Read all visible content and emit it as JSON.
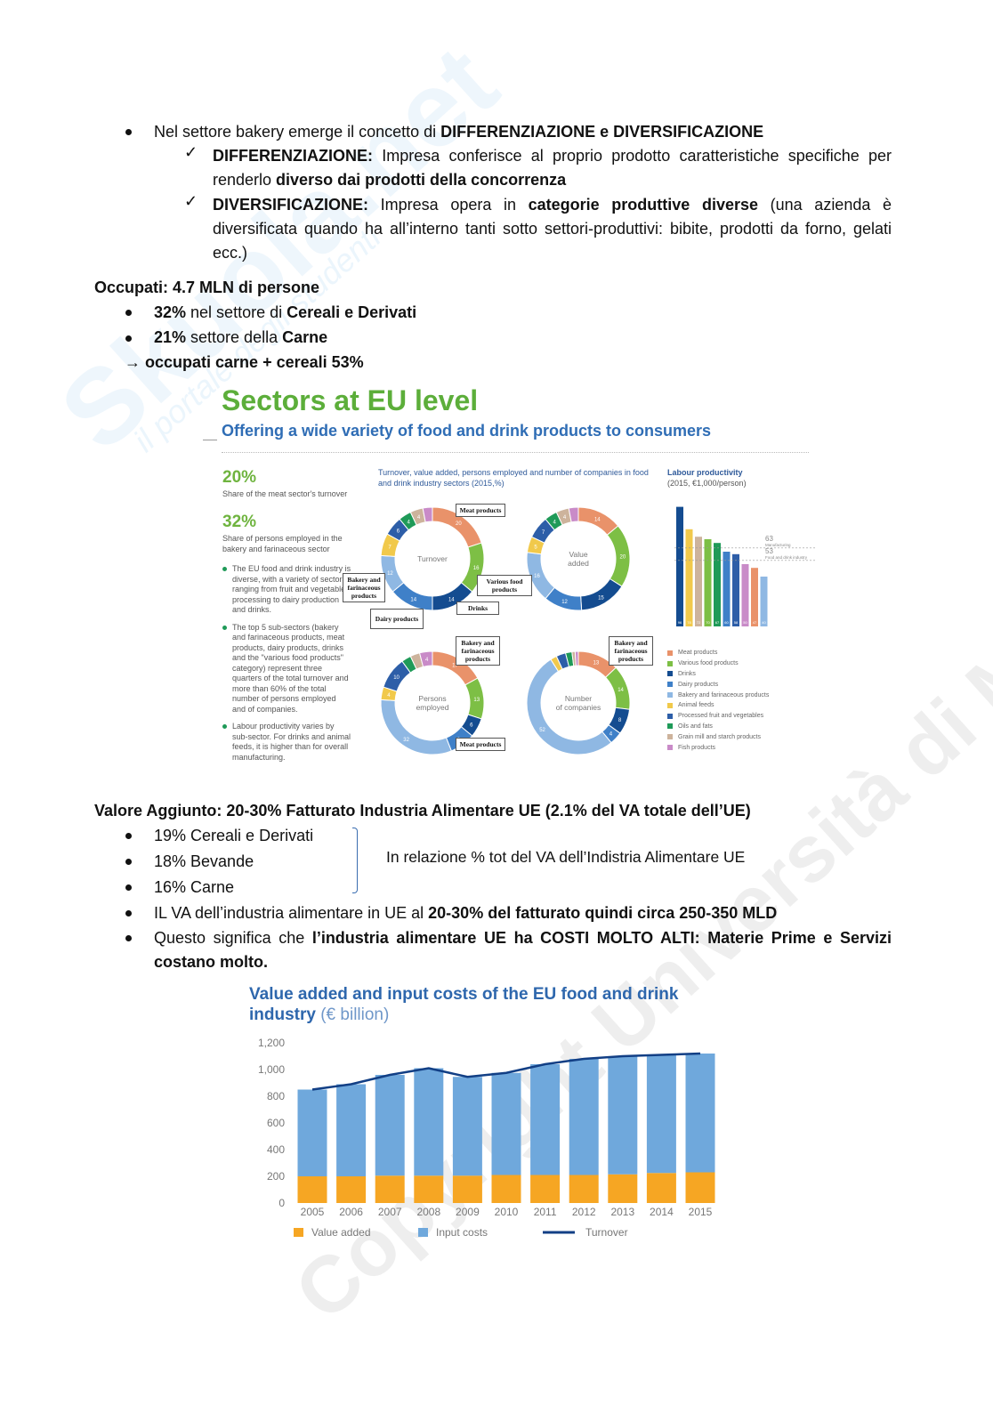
{
  "watermarks": {
    "logo": "Skuola.net",
    "tagline": "il portale degli studenti",
    "copyright": "Copyright Università di Milano"
  },
  "intro": {
    "bullet": {
      "pre": "Nel settore bakery emerge il concetto di ",
      "bold": "DIFFERENZIAZIONE e DIVERSIFICAZIONE"
    },
    "checks": [
      {
        "term": "DIFFERENZIAZIONE:",
        "t1": " Impresa conferisce al proprio prodotto caratteristiche specifiche per renderlo ",
        "b1": "diverso dai prodotti della concorrenza",
        "t2": ""
      },
      {
        "term": "DIVERSIFICAZIONE:",
        "t1": " Impresa opera in ",
        "b1": "categorie produttive diverse",
        "t2": " (una azienda è diversificata quando ha all’interno tanti sotto settori-produttivi: bibite, prodotti da forno, gelati ecc.)"
      }
    ]
  },
  "occupati": {
    "heading": "Occupati: 4.7 MLN di persone",
    "items": [
      {
        "b1": "32%",
        "t": " nel settore di ",
        "b2": "Cereali e Derivati"
      },
      {
        "b1": "21%",
        "t": " settore della ",
        "b2": "Carne"
      }
    ],
    "arrow": "→",
    "arrow_text": "occupati carne + cereali 53%"
  },
  "infographic": {
    "title": "Sectors at EU level",
    "subtitle": "Offering a wide variety of food and drink products to consumers",
    "stat1": {
      "value": "20%",
      "label": "Share of the meat sector's turnover"
    },
    "stat2": {
      "value": "32%",
      "label": "Share of persons employed in the bakery and farinaceous sector"
    },
    "notes": [
      "The EU food and drink industry is diverse, with a variety of sectors ranging from fruit and vegetable processing to dairy production and drinks.",
      "The top 5 sub-sectors (bakery and farinaceous products, meat products, dairy products, drinks and the \"various food products\" category) represent three quarters of the total turnover and more than 60% of the total number of persons employed and of companies.",
      "Labour productivity varies by sub-sector. For drinks and animal feeds, it is higher than for overall manufacturing."
    ],
    "donut_heading": "Turnover, value added, persons employed and number of companies in food and drink industry sectors (2015,%)",
    "productivity_heading": "Labour productivity",
    "productivity_sub": "(2015, €1,000/person)",
    "ref_manufacturing": {
      "value": "63",
      "label": "Manufacturing"
    },
    "ref_food": {
      "value": "53",
      "label": "Food and drink industry"
    },
    "sectors": [
      {
        "name": "Meat products",
        "color": "#e9926a"
      },
      {
        "name": "Various food products",
        "color": "#7dbf45"
      },
      {
        "name": "Drinks",
        "color": "#144c90"
      },
      {
        "name": "Dairy products",
        "color": "#3f80c8"
      },
      {
        "name": "Bakery and farinaceous products",
        "color": "#8fb8e3"
      },
      {
        "name": "Animal feeds",
        "color": "#f1c94b"
      },
      {
        "name": "Processed fruit and vegetables",
        "color": "#2d5ea8"
      },
      {
        "name": "Oils and fats",
        "color": "#1f9a58"
      },
      {
        "name": "Grain mill and starch products",
        "color": "#cdb39c"
      },
      {
        "name": "Fish products",
        "color": "#c98bc8"
      }
    ],
    "donuts": [
      {
        "label": "Turnover",
        "values": [
          20,
          16,
          14,
          14,
          12,
          7,
          6,
          4,
          4,
          3
        ]
      },
      {
        "label": "Value added",
        "values": [
          14,
          20,
          15,
          12,
          16,
          5,
          7,
          4,
          4,
          3
        ]
      },
      {
        "label": "Persons employed",
        "values": [
          17,
          13,
          6,
          8,
          32,
          4,
          10,
          3,
          3,
          4
        ]
      },
      {
        "label": "Number of companies",
        "values": [
          13,
          14,
          8,
          4,
          52,
          2,
          3,
          2,
          1,
          1
        ]
      }
    ],
    "callouts": {
      "meat1": "Meat products",
      "various": "Various food products",
      "drinks": "Drinks",
      "bakery1": "Bakery and farinaceous products",
      "dairy": "Dairy products",
      "bakery2": "Bakery and farinaceous products",
      "meat2": "Meat products",
      "bakery3": "Bakery and farinaceous products"
    },
    "productivity_values": [
      96,
      78,
      72,
      70,
      67,
      60,
      58,
      50,
      47,
      40
    ],
    "productivity_colors": [
      "#144c90",
      "#f1c94b",
      "#cdb39c",
      "#7dbf45",
      "#1f9a58",
      "#3f80c8",
      "#2d5ea8",
      "#c98bc8",
      "#e9926a",
      "#8fb8e3"
    ]
  },
  "valore": {
    "heading": "Valore Aggiunto: 20-30% Fatturato Industria Alimentare UE  (2.1% del VA totale dell’UE)",
    "items": [
      "19% Cereali e Derivati",
      "18% Bevande",
      "16% Carne"
    ],
    "brace_note": "In relazione % tot del VA dell’Indistria Alimentare UE",
    "b3": {
      "t": "IL VA dell’industria alimentare in UE al ",
      "b": "20-30% del fatturato quindi circa 250-350 MLD"
    },
    "b4": {
      "t": "Questo significa che ",
      "b": "l’industria alimentare UE ha COSTI MOLTO ALTI: Materie Prime e Servizi costano molto."
    }
  },
  "chart_data": {
    "type": "bar",
    "title": "Value added and input costs of the EU food and drink industry",
    "title_unit": "(€ billion)",
    "categories": [
      "2005",
      "2006",
      "2007",
      "2008",
      "2009",
      "2010",
      "2011",
      "2012",
      "2013",
      "2014",
      "2015"
    ],
    "series": [
      {
        "name": "Value added",
        "color": "#f6a623",
        "values": [
          200,
          200,
          205,
          205,
          205,
          210,
          210,
          210,
          215,
          225,
          230
        ]
      },
      {
        "name": "Input costs",
        "color": "#6fa8dc",
        "values": [
          650,
          690,
          755,
          805,
          740,
          765,
          830,
          870,
          885,
          885,
          890
        ]
      },
      {
        "name": "Turnover",
        "color": "#123f85",
        "type": "line",
        "values": [
          850,
          890,
          960,
          1010,
          945,
          975,
          1040,
          1080,
          1100,
          1110,
          1120
        ]
      }
    ],
    "yticks": [
      "0",
      "200",
      "400",
      "600",
      "800",
      "1,000",
      "1,200"
    ],
    "ylim": [
      0,
      1200
    ],
    "stacked": true,
    "legend": "bottom"
  }
}
